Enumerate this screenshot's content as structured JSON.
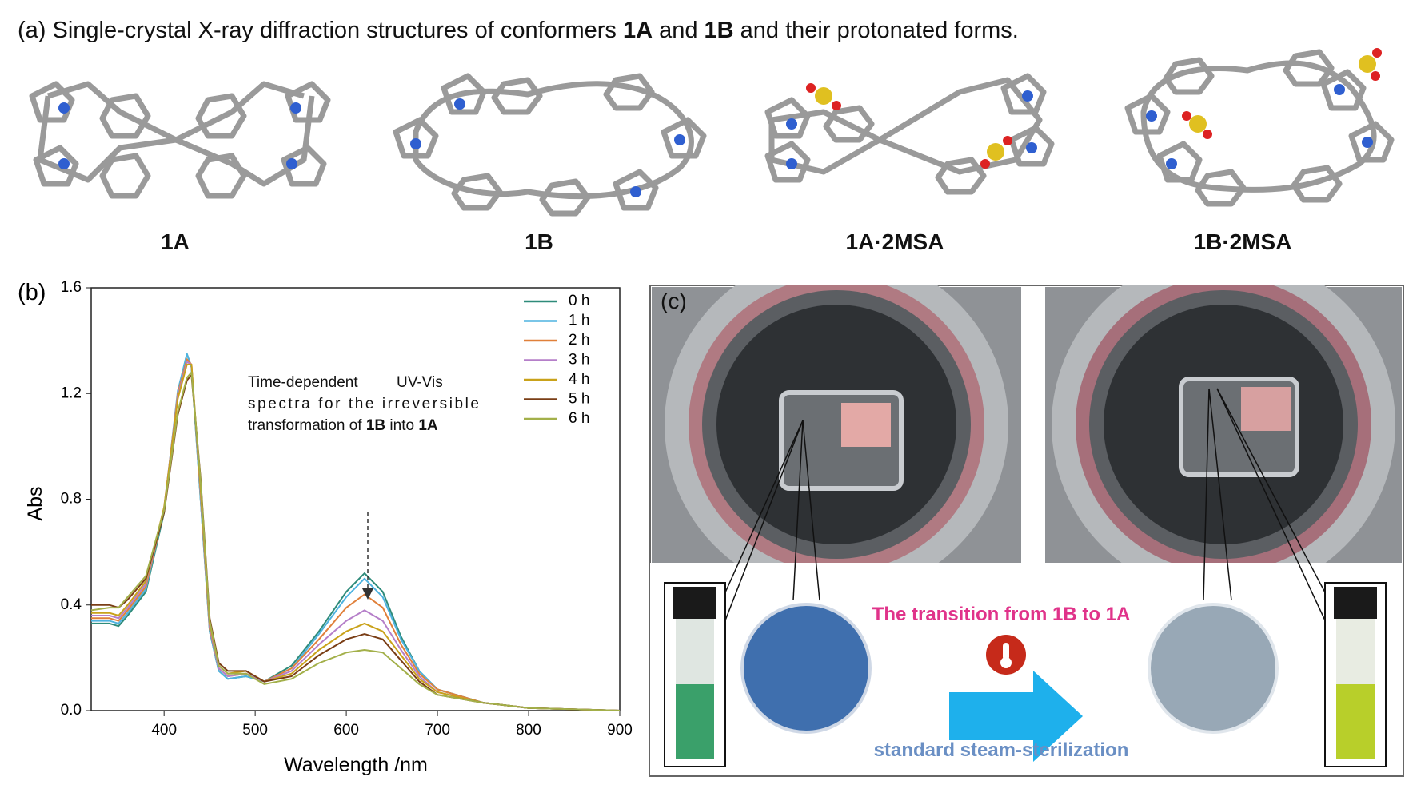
{
  "panel_a": {
    "caption": [
      "(a)",
      " Single-crystal X-ray diffraction structures of conformers ",
      "1A",
      " and ",
      "1B",
      " and their protonated forms."
    ],
    "structures": [
      "1A",
      "1B",
      "1A·2MSA",
      "1B·2MSA"
    ]
  },
  "chart_data": {
    "type": "line",
    "panel_label": "(b)",
    "annotation": [
      [
        "Time-dependent",
        "UV-Vis"
      ],
      [
        "spectra for the irreversible"
      ],
      [
        "transformation of ",
        "1B",
        " into ",
        "1A"
      ]
    ],
    "x_label": "Wavelength /nm",
    "y_label": "Abs",
    "x": [
      320,
      340,
      350,
      360,
      380,
      400,
      415,
      425,
      430,
      440,
      450,
      460,
      470,
      490,
      510,
      540,
      570,
      600,
      620,
      640,
      660,
      680,
      700,
      750,
      800,
      900
    ],
    "series": [
      {
        "name": "0 h",
        "color": "#2e8b7a",
        "values": [
          0.33,
          0.33,
          0.32,
          0.36,
          0.45,
          0.75,
          1.2,
          1.35,
          1.3,
          0.8,
          0.3,
          0.15,
          0.12,
          0.13,
          0.11,
          0.17,
          0.3,
          0.45,
          0.52,
          0.45,
          0.28,
          0.15,
          0.08,
          0.03,
          0.01,
          0.0
        ]
      },
      {
        "name": "1 h",
        "color": "#4fb3e0",
        "values": [
          0.34,
          0.34,
          0.33,
          0.37,
          0.46,
          0.76,
          1.21,
          1.35,
          1.3,
          0.8,
          0.3,
          0.15,
          0.12,
          0.13,
          0.11,
          0.16,
          0.29,
          0.43,
          0.5,
          0.43,
          0.27,
          0.15,
          0.08,
          0.03,
          0.01,
          0.0
        ]
      },
      {
        "name": "2 h",
        "color": "#e0803a",
        "values": [
          0.35,
          0.35,
          0.34,
          0.38,
          0.47,
          0.76,
          1.2,
          1.33,
          1.31,
          0.82,
          0.31,
          0.16,
          0.13,
          0.14,
          0.11,
          0.16,
          0.27,
          0.39,
          0.44,
          0.39,
          0.25,
          0.14,
          0.08,
          0.03,
          0.01,
          0.0
        ]
      },
      {
        "name": "3 h",
        "color": "#b57fc9",
        "values": [
          0.36,
          0.36,
          0.35,
          0.39,
          0.48,
          0.77,
          1.19,
          1.32,
          1.31,
          0.83,
          0.32,
          0.16,
          0.13,
          0.14,
          0.11,
          0.15,
          0.25,
          0.34,
          0.38,
          0.34,
          0.23,
          0.13,
          0.07,
          0.03,
          0.01,
          0.0
        ]
      },
      {
        "name": "4 h",
        "color": "#c9a21a",
        "values": [
          0.37,
          0.37,
          0.36,
          0.4,
          0.49,
          0.77,
          1.18,
          1.31,
          1.31,
          0.84,
          0.33,
          0.17,
          0.14,
          0.15,
          0.11,
          0.14,
          0.23,
          0.3,
          0.33,
          0.3,
          0.21,
          0.12,
          0.07,
          0.03,
          0.01,
          0.0
        ]
      },
      {
        "name": "5 h",
        "color": "#7a3e16",
        "values": [
          0.4,
          0.4,
          0.39,
          0.42,
          0.5,
          0.75,
          1.12,
          1.25,
          1.27,
          0.88,
          0.35,
          0.18,
          0.15,
          0.15,
          0.11,
          0.13,
          0.21,
          0.27,
          0.29,
          0.27,
          0.19,
          0.11,
          0.06,
          0.03,
          0.01,
          0.0
        ]
      },
      {
        "name": "6 h",
        "color": "#a3b04a",
        "values": [
          0.38,
          0.39,
          0.39,
          0.43,
          0.51,
          0.76,
          1.13,
          1.26,
          1.28,
          0.87,
          0.34,
          0.17,
          0.14,
          0.14,
          0.1,
          0.12,
          0.18,
          0.22,
          0.23,
          0.22,
          0.16,
          0.1,
          0.06,
          0.03,
          0.01,
          0.0
        ]
      }
    ],
    "xlim": [
      320,
      900
    ],
    "xticks": [
      400,
      500,
      600,
      700,
      800,
      900
    ],
    "ylim": [
      0,
      1.6
    ],
    "yticks": [
      {
        "value": 0,
        "label": "0.0"
      },
      0.4,
      0.8,
      1.2,
      1.6
    ],
    "grid": false
  },
  "panel_c": {
    "label": "(c)",
    "transition": "The transition from 1B to 1A",
    "process": "standard steam-sterilization"
  }
}
